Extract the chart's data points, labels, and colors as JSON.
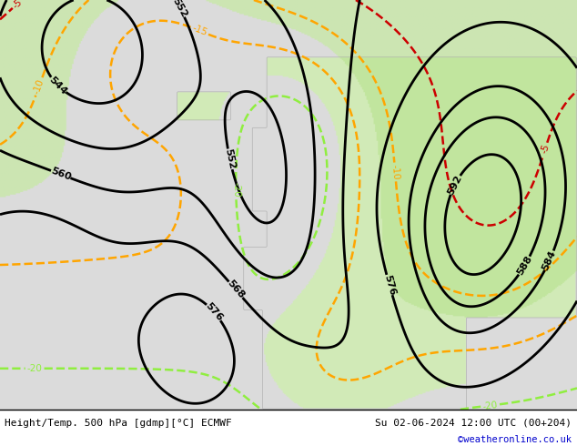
{
  "title_left": "Height/Temp. 500 hPa [gdmp][°C] ECMWF",
  "title_right": "Su 02-06-2024 12:00 UTC (00+204)",
  "credit": "©weatheronline.co.uk",
  "fig_width": 6.34,
  "fig_height": 4.9,
  "dpi": 100,
  "height_line_color": "#000000",
  "temp_orange_color": "#ffa500",
  "temp_cyan_color": "#00ced1",
  "temp_green_color": "#90ee40",
  "temp_red_color": "#cc0000",
  "credit_color": "#0000cd",
  "bg_gray": "#d8d8d8",
  "bg_green": "#c8e8a0",
  "coastline_color": "#a0a0a0"
}
